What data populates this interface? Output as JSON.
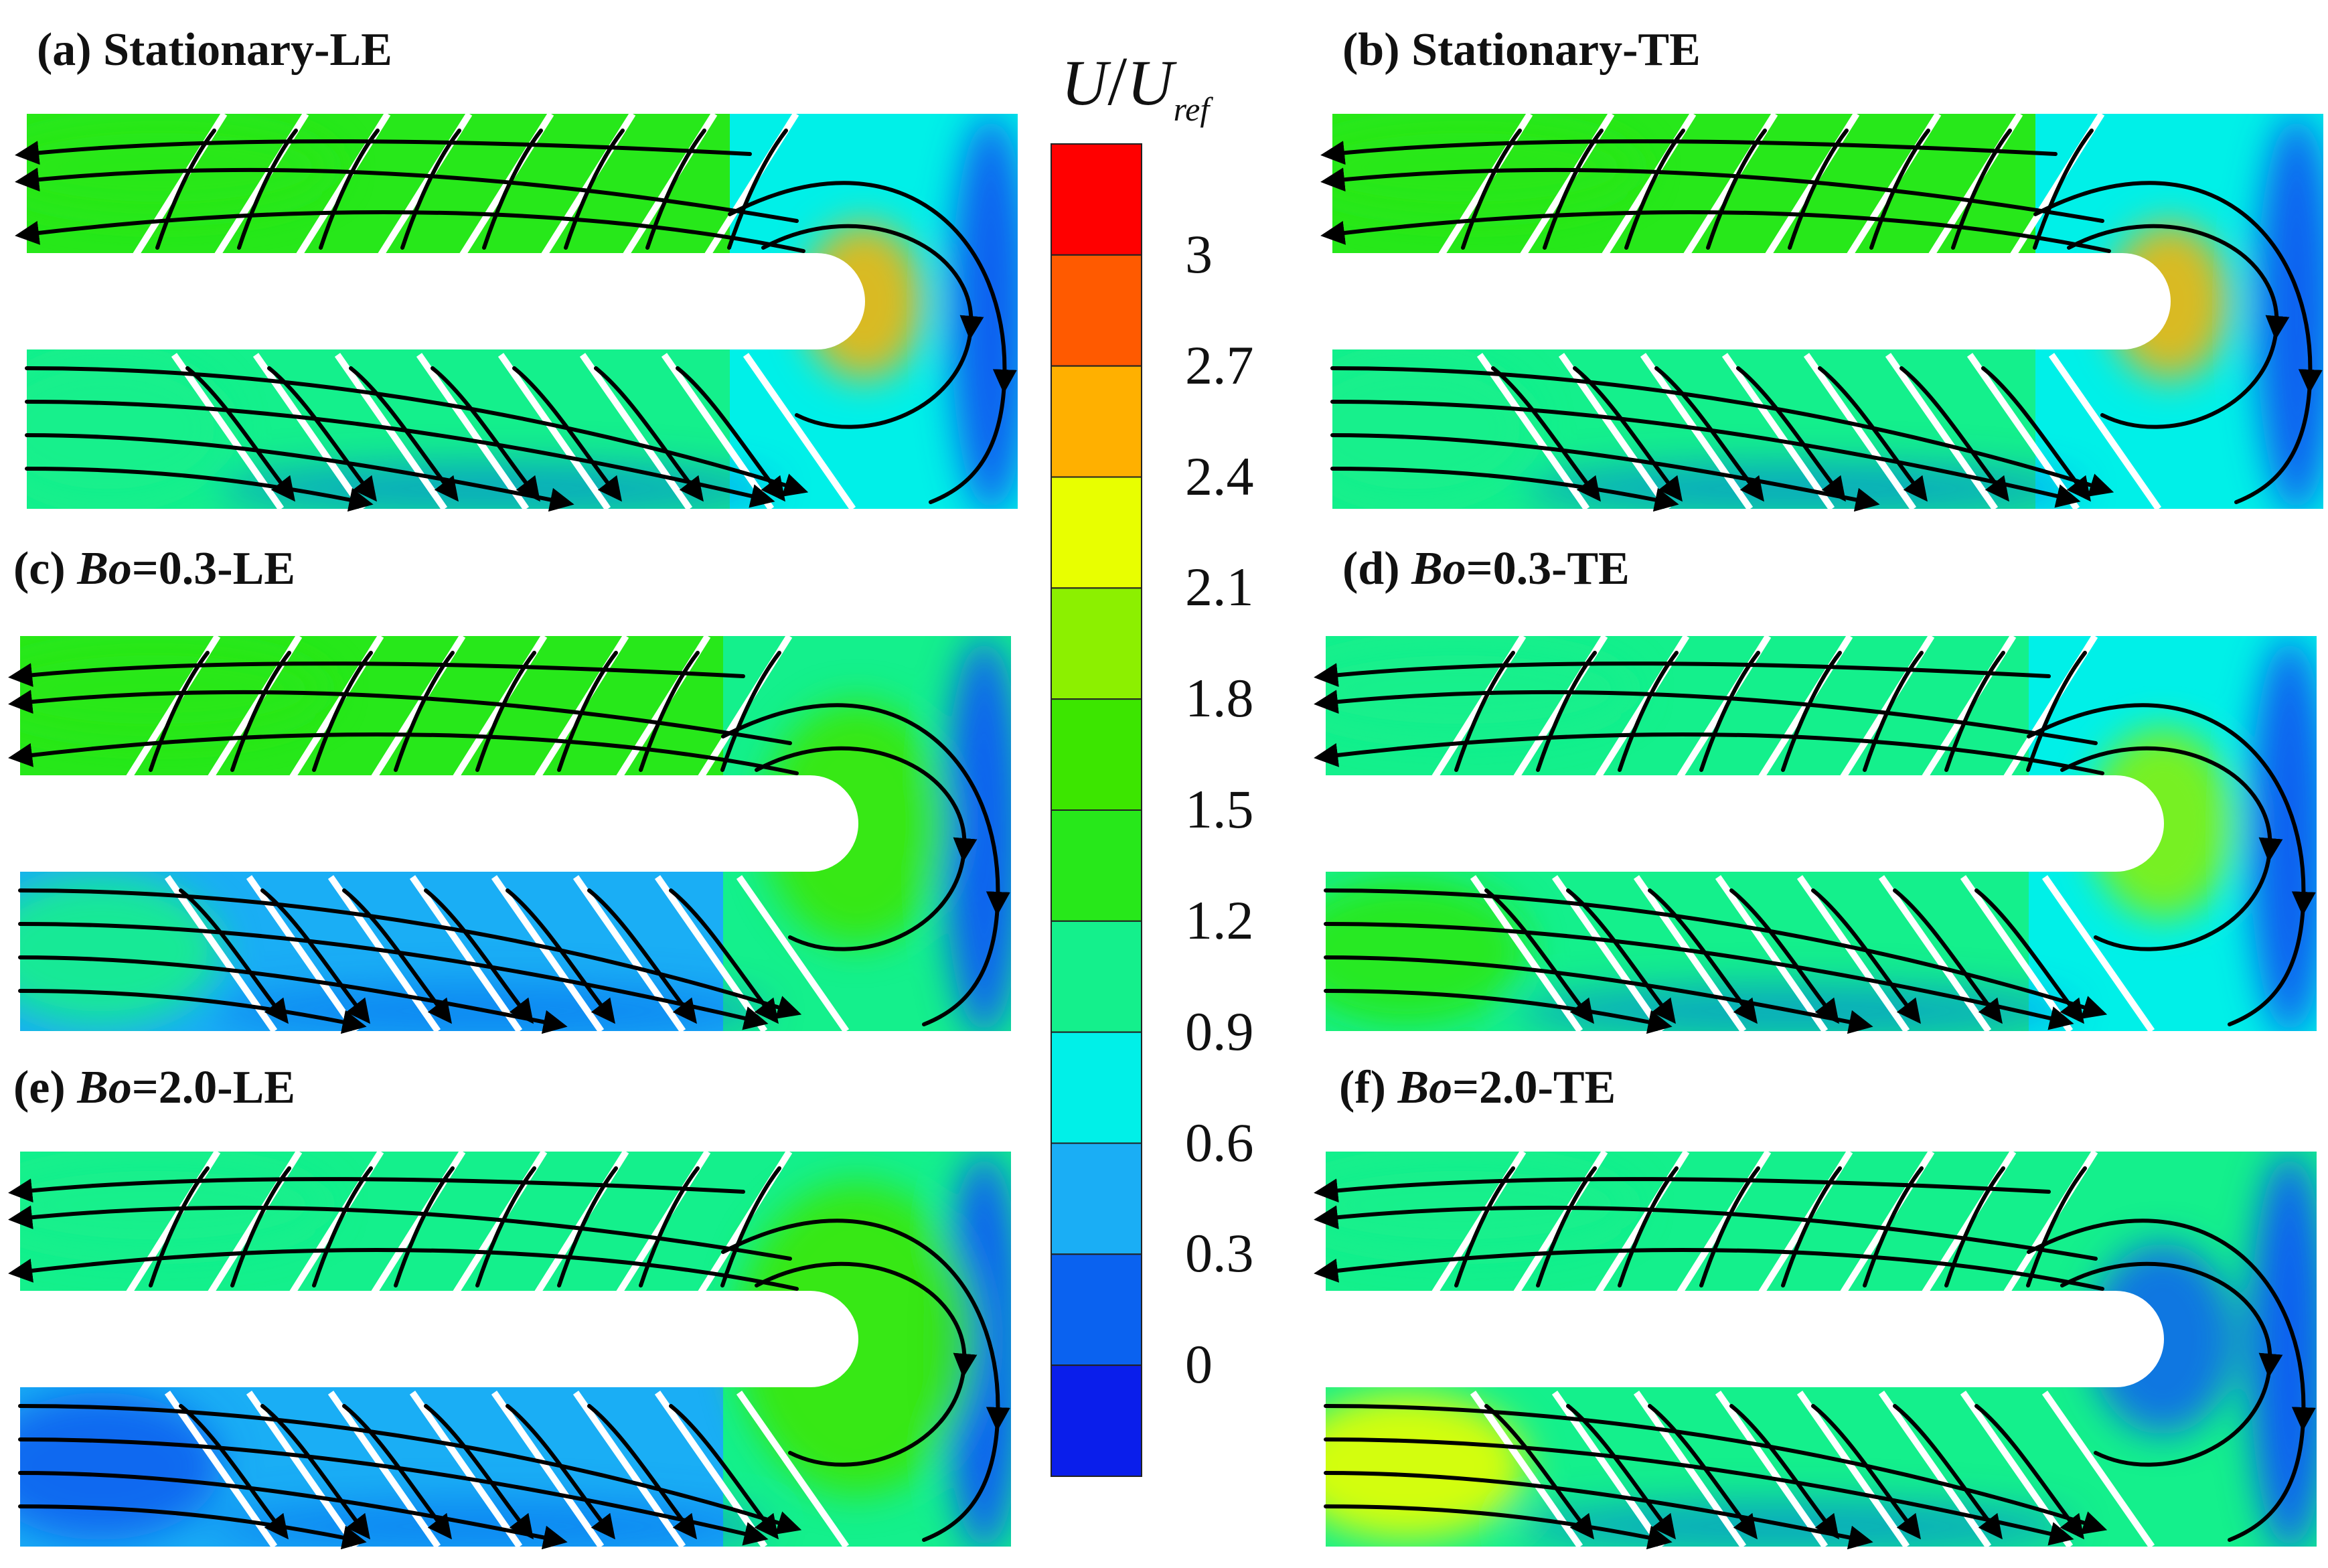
{
  "panels": [
    {
      "id": "a",
      "prefix": "(a) ",
      "bo": "",
      "suffix": "Stationary-LE",
      "case": "stationary-le"
    },
    {
      "id": "b",
      "prefix": "(b) ",
      "bo": "",
      "suffix": "Stationary-TE",
      "case": "stationary-te"
    },
    {
      "id": "c",
      "prefix": "(c) ",
      "bo": "Bo",
      "suffix": "=0.3-LE",
      "case": "bo03-le"
    },
    {
      "id": "d",
      "prefix": "(d) ",
      "bo": "Bo",
      "suffix": "=0.3-TE",
      "case": "bo03-te"
    },
    {
      "id": "e",
      "prefix": "(e) ",
      "bo": "Bo",
      "suffix": "=2.0-LE",
      "case": "bo20-le"
    },
    {
      "id": "f",
      "prefix": "(f) ",
      "bo": "Bo",
      "suffix": "=2.0-TE",
      "case": "bo20-te"
    }
  ],
  "colorbar": {
    "title_main": "U",
    "title_sep": "/",
    "title_denom": "U",
    "title_sub": "ref",
    "ticks": [
      "3",
      "2.7",
      "2.4",
      "2.1",
      "1.8",
      "1.5",
      "1.2",
      "0.9",
      "0.6",
      "0.3",
      "0"
    ],
    "colors": [
      "#ff0000",
      "#ff5a00",
      "#ffb000",
      "#e8ff00",
      "#8cf000",
      "#3ce600",
      "#27e81a",
      "#14f08c",
      "#00f0e8",
      "#1aaef5",
      "#0a62f0",
      "#0a1eeb"
    ]
  }
}
